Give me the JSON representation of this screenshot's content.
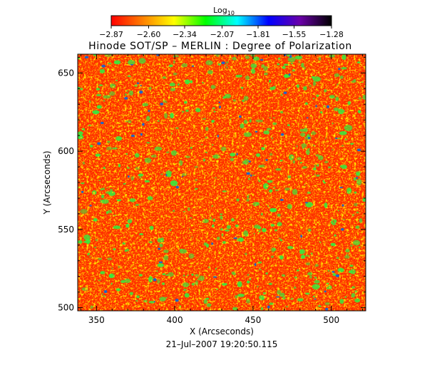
{
  "chart_data": {
    "type": "heatmap",
    "title": "Hinode SOT/SP – MERLIN : Degree of Polarization",
    "xlabel": "X (Arcseconds)",
    "ylabel": "Y (Arcseconds)",
    "xlim": [
      338,
      522
    ],
    "ylim": [
      498,
      662
    ],
    "x_ticks": [
      "350",
      "400",
      "450",
      "500"
    ],
    "y_ticks": [
      "500",
      "550",
      "600",
      "650"
    ],
    "x_tick_values": [
      350,
      400,
      450,
      500
    ],
    "y_tick_values": [
      500,
      550,
      600,
      650
    ],
    "timestamp": "21–Jul–2007 19:20:50.115",
    "colorbar": {
      "label_base": "Log",
      "label_sub": "10",
      "range": [
        -2.87,
        -1.28
      ],
      "tick_labels": [
        "−2.87",
        "−2.60",
        "−2.34",
        "−2.07",
        "−1.81",
        "−1.55",
        "−1.28"
      ],
      "tick_values": [
        -2.87,
        -2.6,
        -2.34,
        -2.07,
        -1.81,
        -1.55,
        -1.28
      ],
      "colormap_stops": [
        "#ff0000",
        "#ff8000",
        "#ffff00",
        "#00ff00",
        "#00ffff",
        "#0000ff",
        "#6a00a8",
        "#000000"
      ]
    },
    "field_palette": {
      "dominant": "#ff2a00",
      "secondary": "#ff8c00",
      "speckle": "#ffd700",
      "patch": "#3ce63c",
      "core": "#1e64c8"
    }
  }
}
